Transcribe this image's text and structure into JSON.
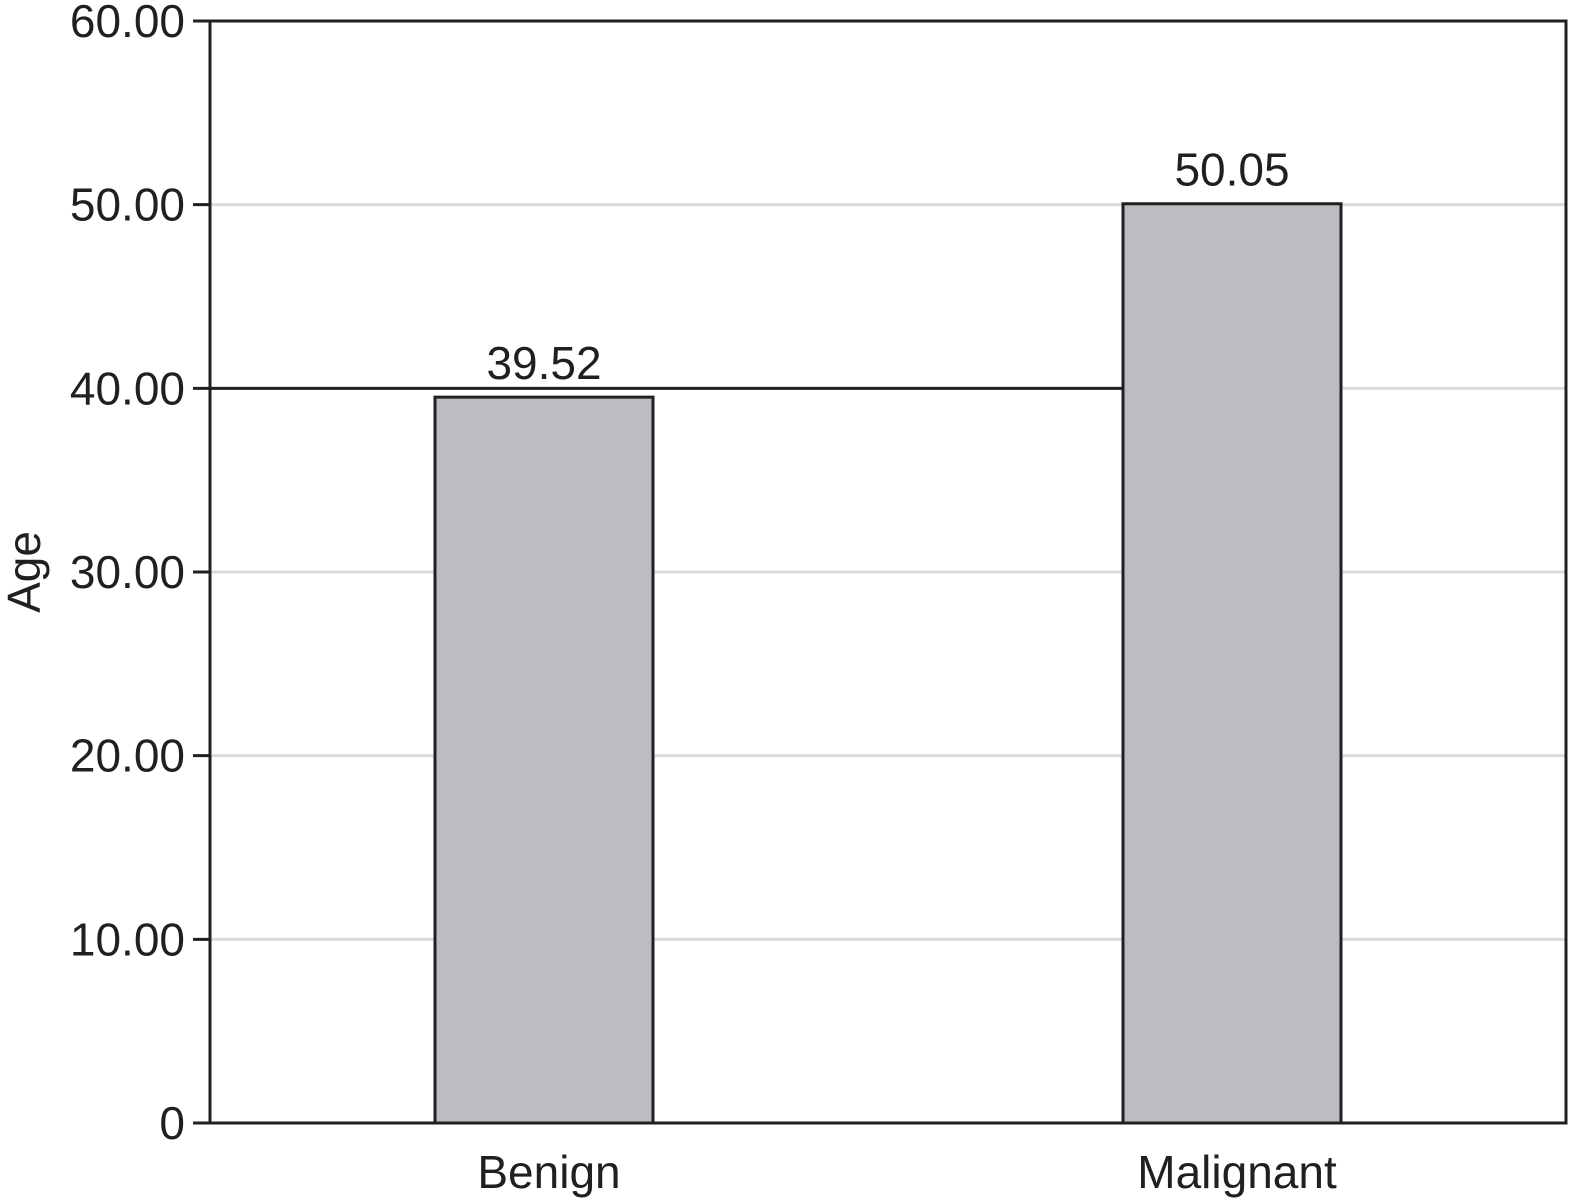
{
  "chart_data": {
    "type": "bar",
    "categories": [
      "Benign",
      "Malignant"
    ],
    "values": [
      39.52,
      50.05
    ],
    "data_labels": [
      "39.52",
      "50.05"
    ],
    "ylabel": "Age",
    "xlabel": "",
    "ylim": [
      0,
      60
    ],
    "y_ticks": [
      0,
      10,
      20,
      30,
      40,
      50,
      60
    ],
    "y_tick_labels": [
      "0",
      "10.00",
      "20.00",
      "30.00",
      "40.00",
      "50.00",
      "60.00"
    ],
    "reference_line": 40,
    "grid": true,
    "legend": "none",
    "colors": {
      "bar_fill": "#bcbdc0",
      "bar_stroke": "#231f20",
      "axis": "#231f20",
      "grid": "#d9d9d9",
      "text": "#231f20"
    }
  }
}
